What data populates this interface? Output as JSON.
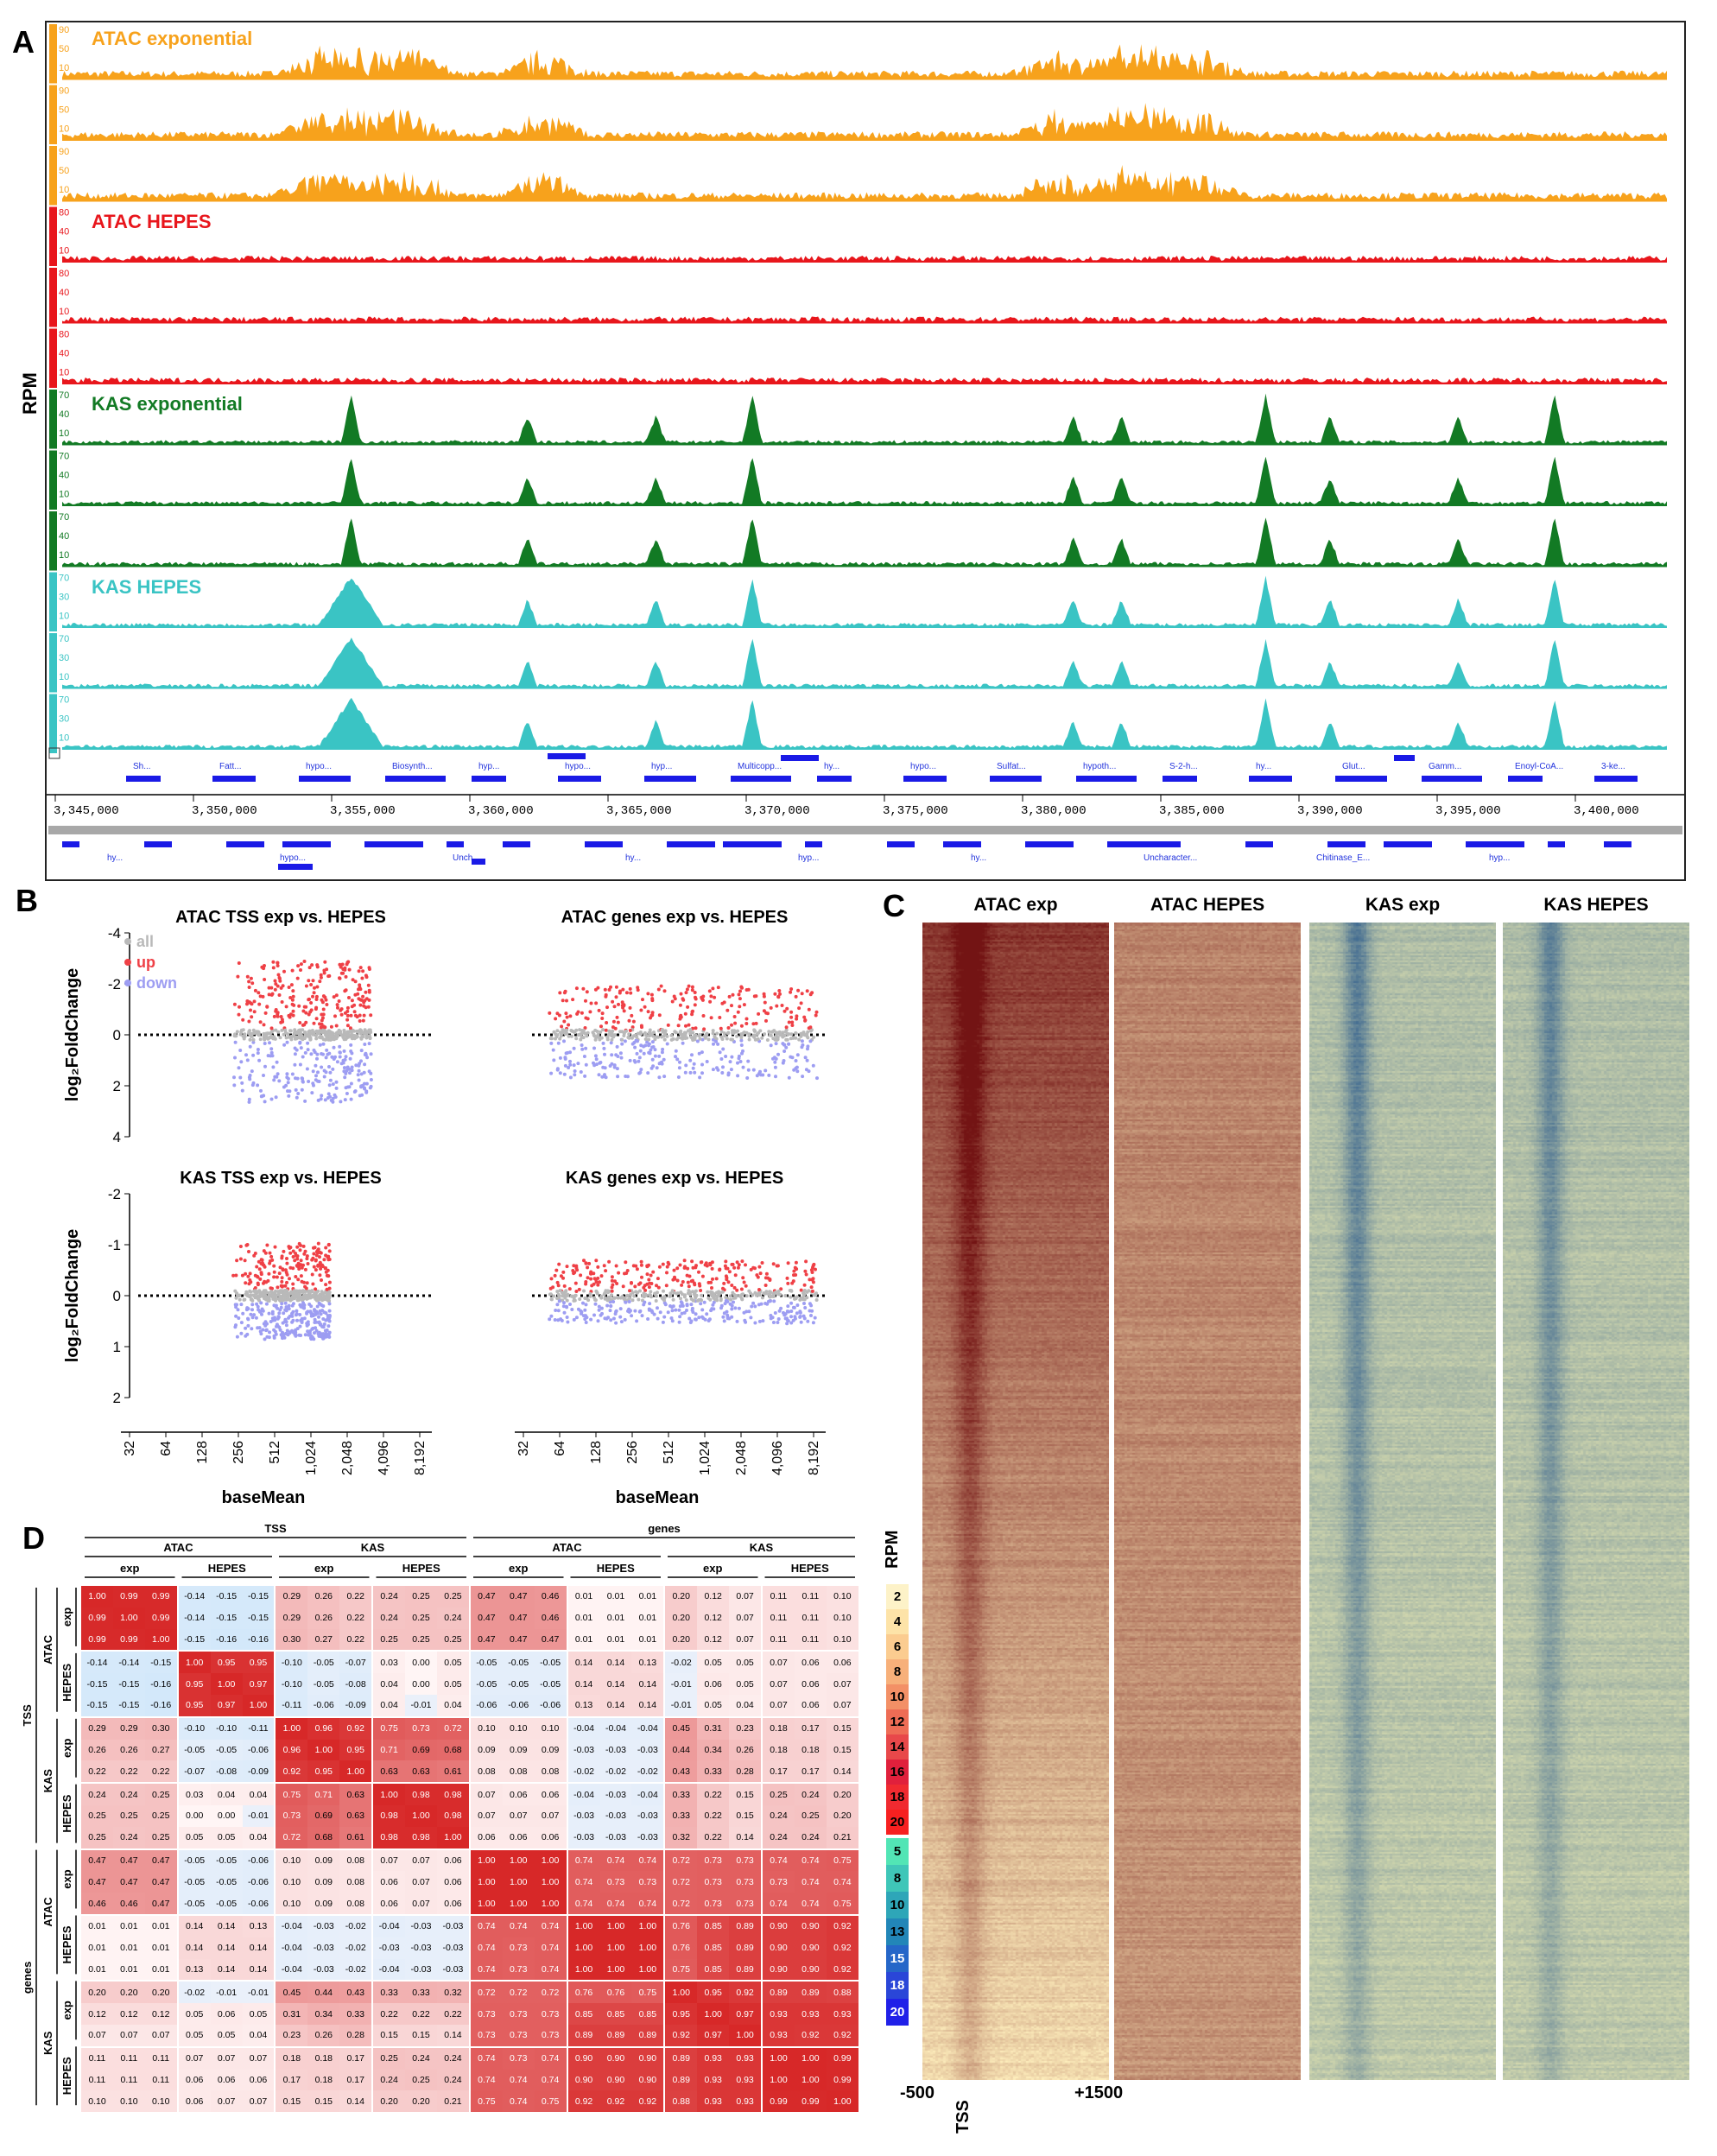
{
  "panels": {
    "a": "A",
    "b": "B",
    "c": "C",
    "d": "D"
  },
  "panel_a": {
    "rpm_label": "RPM",
    "tracks": [
      {
        "name": "ATAC exponential",
        "color": "#f7a21c",
        "scale": [
          "90",
          "50",
          "10"
        ],
        "replicates": 3
      },
      {
        "name": "ATAC HEPES",
        "color": "#e8161c",
        "scale": [
          "80",
          "40",
          "10"
        ],
        "replicates": 3
      },
      {
        "name": "KAS exponential",
        "color": "#127a24",
        "scale": [
          "70",
          "40",
          "10"
        ],
        "replicates": 3
      },
      {
        "name": "KAS HEPES",
        "color": "#3ac4c4",
        "scale": [
          "70",
          "30",
          "10"
        ],
        "replicates": 3
      }
    ],
    "genes_top": [
      "Sh...",
      "Fatt...",
      "hypo...",
      "Biosynth...",
      "hyp...",
      "hypo...",
      "hyp...",
      "Multicopp...",
      "hy...",
      "hypo...",
      "Sulfat...",
      "hypoth...",
      "S-2-h...",
      "hy...",
      "Glut...",
      "Gamm...",
      "Enoyl-CoA...",
      "3-ke..."
    ],
    "genes_bottom": [
      "hy...",
      "hypo...",
      "Unch...",
      "hy...",
      "hyp...",
      "hy...",
      "Uncharacter...",
      "Chitinase_E...",
      "hyp..."
    ],
    "coordinates": [
      "3,345,000",
      "3,350,000",
      "3,355,000",
      "3,360,000",
      "3,365,000",
      "3,370,000",
      "3,375,000",
      "3,380,000",
      "3,385,000",
      "3,390,000",
      "3,395,000",
      "3,400,000"
    ]
  },
  "panel_b": {
    "legend": [
      "all",
      "up",
      "down"
    ],
    "legend_colors": [
      "#b9b9b9",
      "#ef4046",
      "#9d9df2"
    ],
    "ylabel": "log₂FoldChange",
    "xlabel": "baseMean",
    "x_ticks": [
      "32",
      "64",
      "128",
      "256",
      "512",
      "1,024",
      "2,048",
      "4,096",
      "8,192"
    ],
    "plots": [
      {
        "title": "ATAC TSS exp vs. HEPES",
        "y_ticks": [
          "-4",
          "-2",
          "0",
          "2",
          "4"
        ],
        "ylim": [
          -4,
          4
        ]
      },
      {
        "title": "ATAC genes exp vs. HEPES",
        "y_ticks": [
          "-4",
          "-2",
          "0",
          "2",
          "4"
        ],
        "ylim": [
          -4,
          4
        ]
      },
      {
        "title": "KAS TSS exp vs. HEPES",
        "y_ticks": [
          "-2",
          "-1",
          "0",
          "1",
          "2"
        ],
        "ylim": [
          -2,
          2
        ]
      },
      {
        "title": "KAS genes exp vs. HEPES",
        "y_ticks": [
          "-2",
          "-1",
          "0",
          "1",
          "2"
        ],
        "ylim": [
          -2,
          2
        ]
      }
    ]
  },
  "panel_c": {
    "titles": [
      "ATAC exp",
      "ATAC HEPES",
      "KAS exp",
      "KAS HEPES"
    ],
    "x_labels": {
      "left": "-500",
      "center": "TSS",
      "right": "+1500"
    },
    "rpm_label": "RPM",
    "cbar_atac": [
      "2",
      "4",
      "6",
      "8",
      "10",
      "12",
      "14",
      "16",
      "18",
      "20"
    ],
    "cbar_kas": [
      "5",
      "8",
      "10",
      "13",
      "15",
      "18",
      "20"
    ]
  },
  "panel_d": {
    "top_groups": [
      "TSS",
      "genes"
    ],
    "sub_groups": [
      "ATAC",
      "KAS",
      "ATAC",
      "KAS"
    ],
    "conditions": [
      "exp",
      "HEPES",
      "exp",
      "HEPES",
      "exp",
      "HEPES",
      "exp",
      "HEPES"
    ],
    "row_labels": {
      "outer": [
        "TSS",
        "genes"
      ],
      "mid": [
        "ATAC",
        "KAS",
        "ATAC",
        "KAS"
      ],
      "inner": [
        "exp",
        "HEPES",
        "exp",
        "HEPES",
        "exp",
        "HEPES",
        "exp",
        "HEPES"
      ]
    },
    "matrix": [
      [
        "1.00",
        "0.99",
        "0.99",
        "-0.14",
        "-0.15",
        "-0.15",
        "0.29",
        "0.26",
        "0.22",
        "0.24",
        "0.25",
        "0.25",
        "0.47",
        "0.47",
        "0.46",
        "0.01",
        "0.01",
        "0.01",
        "0.20",
        "0.12",
        "0.07",
        "0.11",
        "0.11",
        "0.10"
      ],
      [
        "0.99",
        "1.00",
        "0.99",
        "-0.14",
        "-0.15",
        "-0.15",
        "0.29",
        "0.26",
        "0.22",
        "0.24",
        "0.25",
        "0.24",
        "0.47",
        "0.47",
        "0.46",
        "0.01",
        "0.01",
        "0.01",
        "0.20",
        "0.12",
        "0.07",
        "0.11",
        "0.11",
        "0.10"
      ],
      [
        "0.99",
        "0.99",
        "1.00",
        "-0.15",
        "-0.16",
        "-0.16",
        "0.30",
        "0.27",
        "0.22",
        "0.25",
        "0.25",
        "0.25",
        "0.47",
        "0.47",
        "0.47",
        "0.01",
        "0.01",
        "0.01",
        "0.20",
        "0.12",
        "0.07",
        "0.11",
        "0.11",
        "0.10"
      ],
      [
        "-0.14",
        "-0.14",
        "-0.15",
        "1.00",
        "0.95",
        "0.95",
        "-0.10",
        "-0.05",
        "-0.07",
        "0.03",
        "0.00",
        "0.05",
        "-0.05",
        "-0.05",
        "-0.05",
        "0.14",
        "0.14",
        "0.13",
        "-0.02",
        "0.05",
        "0.05",
        "0.07",
        "0.06",
        "0.06"
      ],
      [
        "-0.15",
        "-0.15",
        "-0.16",
        "0.95",
        "1.00",
        "0.97",
        "-0.10",
        "-0.05",
        "-0.08",
        "0.04",
        "0.00",
        "0.05",
        "-0.05",
        "-0.05",
        "-0.05",
        "0.14",
        "0.14",
        "0.14",
        "-0.01",
        "0.06",
        "0.05",
        "0.07",
        "0.06",
        "0.07"
      ],
      [
        "-0.15",
        "-0.15",
        "-0.16",
        "0.95",
        "0.97",
        "1.00",
        "-0.11",
        "-0.06",
        "-0.09",
        "0.04",
        "-0.01",
        "0.04",
        "-0.06",
        "-0.06",
        "-0.06",
        "0.13",
        "0.14",
        "0.14",
        "-0.01",
        "0.05",
        "0.04",
        "0.07",
        "0.06",
        "0.07"
      ],
      [
        "0.29",
        "0.29",
        "0.30",
        "-0.10",
        "-0.10",
        "-0.11",
        "1.00",
        "0.96",
        "0.92",
        "0.75",
        "0.73",
        "0.72",
        "0.10",
        "0.10",
        "0.10",
        "-0.04",
        "-0.04",
        "-0.04",
        "0.45",
        "0.31",
        "0.23",
        "0.18",
        "0.17",
        "0.15"
      ],
      [
        "0.26",
        "0.26",
        "0.27",
        "-0.05",
        "-0.05",
        "-0.06",
        "0.96",
        "1.00",
        "0.95",
        "0.71",
        "0.69",
        "0.68",
        "0.09",
        "0.09",
        "0.09",
        "-0.03",
        "-0.03",
        "-0.03",
        "0.44",
        "0.34",
        "0.26",
        "0.18",
        "0.18",
        "0.15"
      ],
      [
        "0.22",
        "0.22",
        "0.22",
        "-0.07",
        "-0.08",
        "-0.09",
        "0.92",
        "0.95",
        "1.00",
        "0.63",
        "0.63",
        "0.61",
        "0.08",
        "0.08",
        "0.08",
        "-0.02",
        "-0.02",
        "-0.02",
        "0.43",
        "0.33",
        "0.28",
        "0.17",
        "0.17",
        "0.14"
      ],
      [
        "0.24",
        "0.24",
        "0.25",
        "0.03",
        "0.04",
        "0.04",
        "0.75",
        "0.71",
        "0.63",
        "1.00",
        "0.98",
        "0.98",
        "0.07",
        "0.06",
        "0.06",
        "-0.04",
        "-0.03",
        "-0.04",
        "0.33",
        "0.22",
        "0.15",
        "0.25",
        "0.24",
        "0.20"
      ],
      [
        "0.25",
        "0.25",
        "0.25",
        "0.00",
        "0.00",
        "-0.01",
        "0.73",
        "0.69",
        "0.63",
        "0.98",
        "1.00",
        "0.98",
        "0.07",
        "0.07",
        "0.07",
        "-0.03",
        "-0.03",
        "-0.03",
        "0.33",
        "0.22",
        "0.15",
        "0.24",
        "0.25",
        "0.20"
      ],
      [
        "0.25",
        "0.24",
        "0.25",
        "0.05",
        "0.05",
        "0.04",
        "0.72",
        "0.68",
        "0.61",
        "0.98",
        "0.98",
        "1.00",
        "0.06",
        "0.06",
        "0.06",
        "-0.03",
        "-0.03",
        "-0.03",
        "0.32",
        "0.22",
        "0.14",
        "0.24",
        "0.24",
        "0.21"
      ],
      [
        "0.47",
        "0.47",
        "0.47",
        "-0.05",
        "-0.05",
        "-0.06",
        "0.10",
        "0.09",
        "0.08",
        "0.07",
        "0.07",
        "0.06",
        "1.00",
        "1.00",
        "1.00",
        "0.74",
        "0.74",
        "0.74",
        "0.72",
        "0.73",
        "0.73",
        "0.74",
        "0.74",
        "0.75"
      ],
      [
        "0.47",
        "0.47",
        "0.47",
        "-0.05",
        "-0.05",
        "-0.06",
        "0.10",
        "0.09",
        "0.08",
        "0.06",
        "0.07",
        "0.06",
        "1.00",
        "1.00",
        "1.00",
        "0.74",
        "0.73",
        "0.73",
        "0.72",
        "0.73",
        "0.73",
        "0.73",
        "0.74",
        "0.74"
      ],
      [
        "0.46",
        "0.46",
        "0.47",
        "-0.05",
        "-0.05",
        "-0.06",
        "0.10",
        "0.09",
        "0.08",
        "0.06",
        "0.07",
        "0.06",
        "1.00",
        "1.00",
        "1.00",
        "0.74",
        "0.74",
        "0.74",
        "0.72",
        "0.73",
        "0.73",
        "0.74",
        "0.74",
        "0.75"
      ],
      [
        "0.01",
        "0.01",
        "0.01",
        "0.14",
        "0.14",
        "0.13",
        "-0.04",
        "-0.03",
        "-0.02",
        "-0.04",
        "-0.03",
        "-0.03",
        "0.74",
        "0.74",
        "0.74",
        "1.00",
        "1.00",
        "1.00",
        "0.76",
        "0.85",
        "0.89",
        "0.90",
        "0.90",
        "0.92"
      ],
      [
        "0.01",
        "0.01",
        "0.01",
        "0.14",
        "0.14",
        "0.14",
        "-0.04",
        "-0.03",
        "-0.02",
        "-0.03",
        "-0.03",
        "-0.03",
        "0.74",
        "0.73",
        "0.74",
        "1.00",
        "1.00",
        "1.00",
        "0.76",
        "0.85",
        "0.89",
        "0.90",
        "0.90",
        "0.92"
      ],
      [
        "0.01",
        "0.01",
        "0.01",
        "0.13",
        "0.14",
        "0.14",
        "-0.04",
        "-0.03",
        "-0.02",
        "-0.04",
        "-0.03",
        "-0.03",
        "0.74",
        "0.73",
        "0.74",
        "1.00",
        "1.00",
        "1.00",
        "0.75",
        "0.85",
        "0.89",
        "0.90",
        "0.90",
        "0.92"
      ],
      [
        "0.20",
        "0.20",
        "0.20",
        "-0.02",
        "-0.01",
        "-0.01",
        "0.45",
        "0.44",
        "0.43",
        "0.33",
        "0.33",
        "0.32",
        "0.72",
        "0.72",
        "0.72",
        "0.76",
        "0.76",
        "0.75",
        "1.00",
        "0.95",
        "0.92",
        "0.89",
        "0.89",
        "0.88"
      ],
      [
        "0.12",
        "0.12",
        "0.12",
        "0.05",
        "0.06",
        "0.05",
        "0.31",
        "0.34",
        "0.33",
        "0.22",
        "0.22",
        "0.22",
        "0.73",
        "0.73",
        "0.73",
        "0.85",
        "0.85",
        "0.85",
        "0.95",
        "1.00",
        "0.97",
        "0.93",
        "0.93",
        "0.93"
      ],
      [
        "0.07",
        "0.07",
        "0.07",
        "0.05",
        "0.05",
        "0.04",
        "0.23",
        "0.26",
        "0.28",
        "0.15",
        "0.15",
        "0.14",
        "0.73",
        "0.73",
        "0.73",
        "0.89",
        "0.89",
        "0.89",
        "0.92",
        "0.97",
        "1.00",
        "0.93",
        "0.92",
        "0.92"
      ],
      [
        "0.11",
        "0.11",
        "0.11",
        "0.07",
        "0.07",
        "0.07",
        "0.18",
        "0.18",
        "0.17",
        "0.25",
        "0.24",
        "0.24",
        "0.74",
        "0.73",
        "0.74",
        "0.90",
        "0.90",
        "0.90",
        "0.89",
        "0.93",
        "0.93",
        "1.00",
        "1.00",
        "0.99"
      ],
      [
        "0.11",
        "0.11",
        "0.11",
        "0.06",
        "0.06",
        "0.06",
        "0.17",
        "0.18",
        "0.17",
        "0.24",
        "0.25",
        "0.24",
        "0.74",
        "0.74",
        "0.74",
        "0.90",
        "0.90",
        "0.90",
        "0.89",
        "0.93",
        "0.93",
        "1.00",
        "1.00",
        "0.99"
      ],
      [
        "0.10",
        "0.10",
        "0.10",
        "0.06",
        "0.07",
        "0.07",
        "0.15",
        "0.15",
        "0.14",
        "0.20",
        "0.20",
        "0.21",
        "0.75",
        "0.74",
        "0.75",
        "0.92",
        "0.92",
        "0.92",
        "0.88",
        "0.93",
        "0.93",
        "0.99",
        "0.99",
        "1.00"
      ]
    ]
  }
}
